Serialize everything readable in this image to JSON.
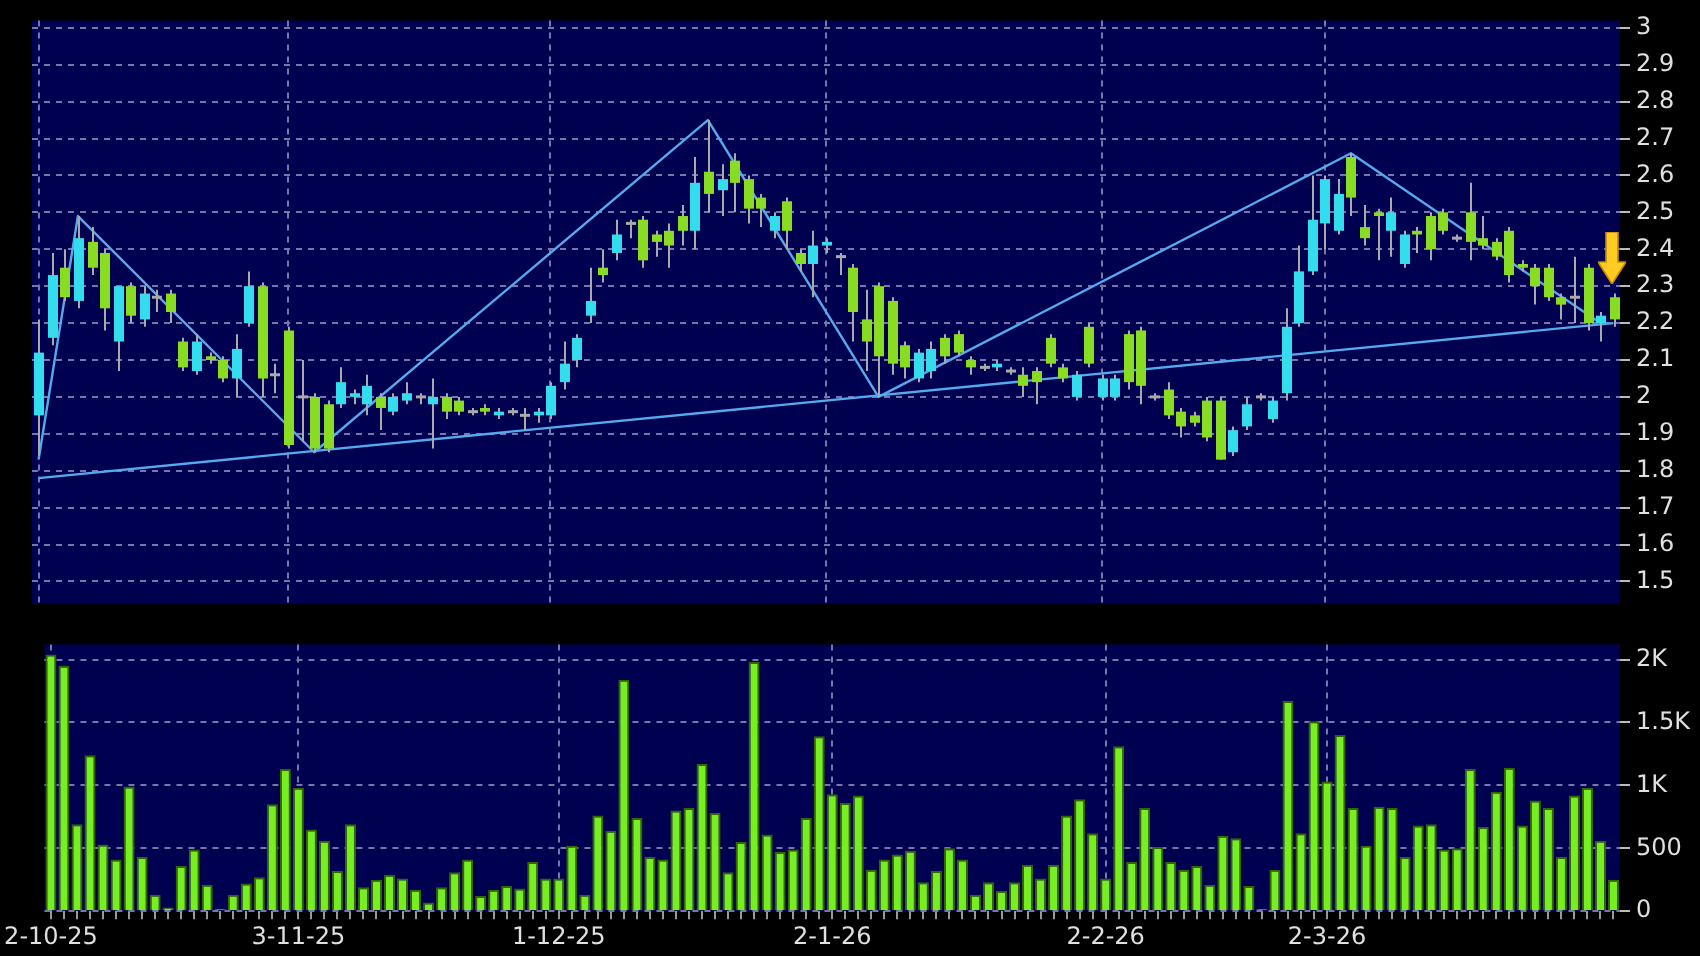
{
  "chart_data": [
    {
      "type": "candlestick",
      "tick_labels": "y",
      "grid": true,
      "ylim": [
        1.44,
        3.02
      ],
      "yticks": [
        1.5,
        1.6,
        1.7,
        1.8,
        1.9,
        2,
        2.1,
        2.2,
        2.3,
        2.4,
        2.5,
        2.6,
        2.7,
        2.8,
        2.9,
        3
      ],
      "categories": [
        null,
        null,
        null,
        null,
        null,
        null,
        null,
        null,
        null,
        null,
        null,
        null,
        null,
        null,
        null,
        null,
        null,
        null,
        null,
        null,
        null,
        null,
        null,
        null,
        null,
        null,
        null,
        null,
        null,
        null,
        null,
        null,
        null,
        null,
        null,
        null,
        null,
        null,
        null,
        null,
        null,
        null,
        null,
        null,
        null,
        null,
        null,
        null,
        null,
        null,
        null,
        null,
        null,
        null,
        null,
        null,
        null,
        null,
        null,
        null,
        null,
        null,
        null,
        null,
        null,
        null,
        null,
        null,
        null,
        null,
        null,
        null,
        null,
        null,
        null,
        null,
        null,
        null,
        null,
        null,
        null,
        null,
        null,
        null,
        null,
        null,
        null,
        null,
        null,
        null,
        null,
        null,
        null,
        null,
        null,
        null,
        null,
        null,
        null,
        null,
        null,
        null,
        null,
        null,
        null,
        null,
        null,
        null,
        null,
        null,
        null,
        null,
        null,
        null,
        null,
        null,
        null,
        null,
        null,
        null,
        null
      ],
      "ohlc": [
        [
          1.95,
          2.21,
          1.84,
          2.12
        ],
        [
          2.16,
          2.39,
          2.14,
          2.33
        ],
        [
          2.35,
          2.4,
          2.26,
          2.27
        ],
        [
          2.26,
          2.49,
          2.24,
          2.43
        ],
        [
          2.42,
          2.46,
          2.33,
          2.35
        ],
        [
          2.39,
          2.4,
          2.18,
          2.24
        ],
        [
          2.15,
          2.3,
          2.07,
          2.3
        ],
        [
          2.3,
          2.31,
          2.2,
          2.22
        ],
        [
          2.21,
          2.3,
          2.19,
          2.28
        ],
        [
          2.27,
          2.29,
          2.23,
          2.27
        ],
        [
          2.28,
          2.29,
          2.2,
          2.23
        ],
        [
          2.15,
          2.16,
          2.07,
          2.08
        ],
        [
          2.07,
          2.17,
          2.06,
          2.15
        ],
        [
          2.11,
          2.12,
          2.09,
          2.1
        ],
        [
          2.1,
          2.11,
          2.04,
          2.05
        ],
        [
          2.05,
          2.17,
          2,
          2.13
        ],
        [
          2.2,
          2.34,
          2.19,
          2.3
        ],
        [
          2.3,
          2.31,
          2,
          2.05
        ],
        [
          2.06,
          2.09,
          2.01,
          2.06
        ],
        [
          2.18,
          2.19,
          1.86,
          1.87
        ],
        [
          2,
          2.1,
          1.88,
          2
        ],
        [
          2,
          2.01,
          1.85,
          1.86
        ],
        [
          1.98,
          1.99,
          1.85,
          1.86
        ],
        [
          1.98,
          2.08,
          1.97,
          2.04
        ],
        [
          2,
          2.02,
          1.98,
          2.01
        ],
        [
          1.98,
          2.06,
          1.95,
          2.03
        ],
        [
          2,
          2.01,
          1.91,
          1.97
        ],
        [
          1.96,
          2.01,
          1.95,
          2
        ],
        [
          1.99,
          2.04,
          1.98,
          2.01
        ],
        [
          2,
          2.01,
          1.98,
          2
        ],
        [
          1.98,
          2.05,
          1.86,
          2
        ],
        [
          2,
          2.01,
          1.94,
          1.96
        ],
        [
          1.99,
          2,
          1.95,
          1.96
        ],
        [
          1.96,
          1.97,
          1.95,
          1.96
        ],
        [
          1.97,
          1.98,
          1.95,
          1.96
        ],
        [
          1.95,
          1.97,
          1.94,
          1.96
        ],
        [
          1.96,
          1.97,
          1.95,
          1.96
        ],
        [
          1.95,
          1.97,
          1.91,
          1.95
        ],
        [
          1.95,
          1.97,
          1.93,
          1.96
        ],
        [
          1.95,
          2.04,
          1.94,
          2.03
        ],
        [
          2.04,
          2.15,
          2.02,
          2.09
        ],
        [
          2.1,
          2.17,
          2.08,
          2.16
        ],
        [
          2.22,
          2.35,
          2.2,
          2.26
        ],
        [
          2.35,
          2.4,
          2.31,
          2.33
        ],
        [
          2.39,
          2.48,
          2.37,
          2.44
        ],
        [
          2.47,
          2.48,
          2.43,
          2.47
        ],
        [
          2.48,
          2.49,
          2.35,
          2.37
        ],
        [
          2.44,
          2.45,
          2.38,
          2.42
        ],
        [
          2.45,
          2.47,
          2.35,
          2.41
        ],
        [
          2.49,
          2.52,
          2.41,
          2.45
        ],
        [
          2.45,
          2.65,
          2.4,
          2.58
        ],
        [
          2.61,
          2.75,
          2.5,
          2.55
        ],
        [
          2.56,
          2.63,
          2.49,
          2.59
        ],
        [
          2.64,
          2.66,
          2.5,
          2.58
        ],
        [
          2.59,
          2.6,
          2.47,
          2.51
        ],
        [
          2.54,
          2.55,
          2.46,
          2.51
        ],
        [
          2.45,
          2.5,
          2.43,
          2.49
        ],
        [
          2.53,
          2.54,
          2.4,
          2.45
        ],
        [
          2.39,
          2.4,
          2.34,
          2.36
        ],
        [
          2.36,
          2.45,
          2.27,
          2.41
        ],
        [
          2.41,
          2.43,
          2.39,
          2.42
        ],
        [
          2.38,
          2.39,
          2.33,
          2.38
        ],
        [
          2.35,
          2.36,
          2.15,
          2.23
        ],
        [
          2.21,
          2.29,
          2.07,
          2.15
        ],
        [
          2.3,
          2.31,
          2,
          2.11
        ],
        [
          2.26,
          2.27,
          2.06,
          2.09
        ],
        [
          2.14,
          2.15,
          2.05,
          2.08
        ],
        [
          2.05,
          2.13,
          2.04,
          2.12
        ],
        [
          2.07,
          2.15,
          2.05,
          2.13
        ],
        [
          2.16,
          2.17,
          2.09,
          2.11
        ],
        [
          2.17,
          2.18,
          2.11,
          2.12
        ],
        [
          2.1,
          2.11,
          2.06,
          2.08
        ],
        [
          2.08,
          2.09,
          2.07,
          2.08
        ],
        [
          2.08,
          2.1,
          2.07,
          2.09
        ],
        [
          2.07,
          2.08,
          2.06,
          2.07
        ],
        [
          2.06,
          2.08,
          2,
          2.03
        ],
        [
          2.07,
          2.08,
          1.98,
          2.04
        ],
        [
          2.16,
          2.17,
          2.08,
          2.09
        ],
        [
          2.08,
          2.09,
          2.04,
          2.05
        ],
        [
          2,
          2.07,
          1.99,
          2.06
        ],
        [
          2.19,
          2.2,
          2.08,
          2.09
        ],
        [
          2,
          2.06,
          1.99,
          2.05
        ],
        [
          2,
          2.06,
          1.99,
          2.05
        ],
        [
          2.17,
          2.18,
          2.02,
          2.04
        ],
        [
          2.18,
          2.19,
          1.98,
          2.03
        ],
        [
          2,
          2.01,
          1.99,
          2
        ],
        [
          2.02,
          2.04,
          1.94,
          1.95
        ],
        [
          1.96,
          1.97,
          1.89,
          1.92
        ],
        [
          1.95,
          1.96,
          1.92,
          1.93
        ],
        [
          1.99,
          2,
          1.88,
          1.89
        ],
        [
          1.99,
          2,
          1.83,
          1.83
        ],
        [
          1.85,
          1.92,
          1.84,
          1.91
        ],
        [
          1.92,
          2,
          1.91,
          1.98
        ],
        [
          2,
          2.01,
          1.99,
          2
        ],
        [
          1.94,
          2,
          1.93,
          1.99
        ],
        [
          2.01,
          2.24,
          1.99,
          2.19
        ],
        [
          2.2,
          2.41,
          2.19,
          2.34
        ],
        [
          2.34,
          2.6,
          2.33,
          2.48
        ],
        [
          2.47,
          2.6,
          2.4,
          2.59
        ],
        [
          2.45,
          2.59,
          2.44,
          2.55
        ],
        [
          2.65,
          2.66,
          2.49,
          2.54
        ],
        [
          2.46,
          2.52,
          2.41,
          2.43
        ],
        [
          2.5,
          2.51,
          2.37,
          2.49
        ],
        [
          2.45,
          2.54,
          2.38,
          2.5
        ],
        [
          2.36,
          2.45,
          2.35,
          2.44
        ],
        [
          2.45,
          2.46,
          2.39,
          2.44
        ],
        [
          2.49,
          2.5,
          2.37,
          2.4
        ],
        [
          2.5,
          2.51,
          2.44,
          2.45
        ],
        [
          2.43,
          2.44,
          2.42,
          2.43
        ],
        [
          2.5,
          2.58,
          2.37,
          2.42
        ],
        [
          2.43,
          2.49,
          2.4,
          2.41
        ],
        [
          2.42,
          2.43,
          2.37,
          2.38
        ],
        [
          2.45,
          2.46,
          2.31,
          2.33
        ],
        [
          2.36,
          2.37,
          2.34,
          2.35
        ],
        [
          2.35,
          2.36,
          2.25,
          2.3
        ],
        [
          2.35,
          2.36,
          2.26,
          2.27
        ],
        [
          2.27,
          2.28,
          2.21,
          2.25
        ],
        [
          2.27,
          2.38,
          2.2,
          2.27
        ],
        [
          2.35,
          2.36,
          2.18,
          2.2
        ],
        [
          2.2,
          2.23,
          2.15,
          2.22
        ],
        [
          2.27,
          2.28,
          2.19,
          2.21
        ]
      ],
      "colors": [
        "#33ddee",
        "#33ddee",
        "#88dd22",
        "#33ddee",
        "#88dd22",
        "#88dd22",
        "#33ddee",
        "#88dd22",
        "#33ddee",
        "#aaaaaa",
        "#88dd22",
        "#88dd22",
        "#33ddee",
        "#88dd22",
        "#88dd22",
        "#33ddee",
        "#33ddee",
        "#88dd22",
        "#aaaaaa",
        "#88dd22",
        "#aaaaaa",
        "#88dd22",
        "#88dd22",
        "#33ddee",
        "#33ddee",
        "#33ddee",
        "#88dd22",
        "#33ddee",
        "#33ddee",
        "#aaaaaa",
        "#33ddee",
        "#88dd22",
        "#88dd22",
        "#aaaaaa",
        "#88dd22",
        "#33ddee",
        "#aaaaaa",
        "#aaaaaa",
        "#33ddee",
        "#33ddee",
        "#33ddee",
        "#33ddee",
        "#33ddee",
        "#88dd22",
        "#33ddee",
        "#aaaaaa",
        "#88dd22",
        "#88dd22",
        "#88dd22",
        "#88dd22",
        "#33ddee",
        "#88dd22",
        "#33ddee",
        "#88dd22",
        "#88dd22",
        "#88dd22",
        "#33ddee",
        "#88dd22",
        "#88dd22",
        "#33ddee",
        "#33ddee",
        "#aaaaaa",
        "#88dd22",
        "#88dd22",
        "#88dd22",
        "#88dd22",
        "#88dd22",
        "#33ddee",
        "#33ddee",
        "#88dd22",
        "#88dd22",
        "#88dd22",
        "#aaaaaa",
        "#33ddee",
        "#aaaaaa",
        "#88dd22",
        "#88dd22",
        "#88dd22",
        "#88dd22",
        "#33ddee",
        "#88dd22",
        "#33ddee",
        "#33ddee",
        "#88dd22",
        "#88dd22",
        "#aaaaaa",
        "#88dd22",
        "#88dd22",
        "#88dd22",
        "#88dd22",
        "#88dd22",
        "#33ddee",
        "#33ddee",
        "#aaaaaa",
        "#33ddee",
        "#33ddee",
        "#33ddee",
        "#33ddee",
        "#33ddee",
        "#33ddee",
        "#88dd22",
        "#88dd22",
        "#88dd22",
        "#33ddee",
        "#33ddee",
        "#88dd22",
        "#88dd22",
        "#88dd22",
        "#aaaaaa",
        "#88dd22",
        "#88dd22",
        "#88dd22",
        "#88dd22",
        "#88dd22",
        "#88dd22",
        "#88dd22",
        "#88dd22",
        "#aaaaaa",
        "#88dd22",
        "#33ddee",
        "#88dd22"
      ],
      "series": [
        {
          "type": "line",
          "color": "#55aaee",
          "values": [
            1.83,
            null,
            null,
            2.49,
            null,
            null,
            null,
            null,
            null,
            null,
            null,
            null,
            null,
            null,
            null,
            null,
            null,
            null,
            null,
            null,
            null,
            1.85,
            null,
            null,
            null,
            null,
            null,
            null,
            null,
            null,
            null,
            null,
            null,
            null,
            null,
            null,
            null,
            null,
            null,
            null,
            null,
            null,
            null,
            null,
            null,
            null,
            null,
            null,
            null,
            null,
            null,
            2.75,
            null,
            null,
            null,
            null,
            null,
            null,
            null,
            null,
            null,
            null,
            null,
            null,
            2,
            null,
            null,
            null,
            null,
            null,
            null,
            null,
            null,
            null,
            null,
            null,
            null,
            null,
            null,
            null,
            null,
            null,
            null,
            null,
            null,
            null,
            null,
            null,
            null,
            null,
            null,
            null,
            null,
            null,
            null,
            null,
            null,
            null,
            null,
            null,
            2.66,
            null,
            null,
            null,
            null,
            null,
            null,
            null,
            null,
            null,
            null,
            null,
            null,
            null,
            null,
            null,
            null,
            null,
            null,
            2.2,
            null
          ]
        },
        {
          "type": "line",
          "color": "#55aaee",
          "values": [
            1.78,
            null,
            null,
            null,
            null,
            null,
            null,
            null,
            null,
            null,
            null,
            null,
            null,
            null,
            null,
            null,
            null,
            null,
            null,
            null,
            null,
            null,
            null,
            null,
            null,
            null,
            null,
            null,
            null,
            null,
            null,
            null,
            null,
            null,
            null,
            null,
            null,
            null,
            null,
            null,
            null,
            null,
            null,
            null,
            null,
            null,
            null,
            null,
            null,
            null,
            null,
            null,
            null,
            null,
            null,
            null,
            null,
            null,
            null,
            null,
            null,
            null,
            null,
            null,
            null,
            null,
            null,
            null,
            null,
            null,
            null,
            null,
            null,
            null,
            null,
            null,
            null,
            null,
            null,
            null,
            null,
            null,
            null,
            null,
            null,
            null,
            null,
            null,
            null,
            null,
            null,
            null,
            null,
            null,
            null,
            null,
            null,
            null,
            null,
            null,
            null,
            null,
            null,
            null,
            null,
            null,
            null,
            null,
            null,
            null,
            null,
            null,
            null,
            null,
            null,
            null,
            null,
            null,
            null,
            null,
            2.2
          ]
        }
      ]
    },
    {
      "type": "bar",
      "grid": true,
      "color": "#77ee22",
      "ylim": [
        0,
        2120
      ],
      "yticks": [
        0,
        500,
        {
          "value": 1000,
          "label": "1K"
        },
        {
          "value": 1500,
          "label": "1.5K"
        },
        {
          "value": 2000,
          "label": "2K"
        }
      ],
      "categories": [
        "2-10-25",
        null,
        null,
        null,
        null,
        null,
        null,
        null,
        null,
        null,
        null,
        null,
        null,
        null,
        null,
        null,
        null,
        null,
        null,
        "3-11-25",
        null,
        null,
        null,
        null,
        null,
        null,
        null,
        null,
        null,
        null,
        null,
        null,
        null,
        null,
        null,
        null,
        null,
        null,
        null,
        "1-12-25",
        null,
        null,
        null,
        null,
        null,
        null,
        null,
        null,
        null,
        null,
        null,
        null,
        null,
        null,
        null,
        null,
        null,
        null,
        null,
        null,
        "2-1-26",
        null,
        null,
        null,
        null,
        null,
        null,
        null,
        null,
        null,
        null,
        null,
        null,
        null,
        null,
        null,
        null,
        null,
        null,
        null,
        null,
        "2-2-26",
        null,
        null,
        null,
        null,
        null,
        null,
        null,
        null,
        null,
        null,
        null,
        null,
        null,
        null,
        null,
        null,
        "2-3-26",
        null,
        null,
        null,
        null,
        null,
        null,
        null,
        null,
        null,
        null,
        null,
        null,
        null,
        null,
        null,
        null,
        null,
        null,
        null,
        null,
        null,
        null
      ],
      "values": [
        2040,
        1950,
        690,
        1240,
        530,
        410,
        990,
        430,
        130,
        30,
        360,
        490,
        210,
        20,
        130,
        220,
        270,
        850,
        1130,
        980,
        650,
        560,
        320,
        690,
        190,
        250,
        290,
        260,
        170,
        70,
        190,
        310,
        410,
        120,
        170,
        200,
        180,
        390,
        260,
        260,
        520,
        130,
        760,
        640,
        1840,
        740,
        430,
        410,
        800,
        820,
        1170,
        780,
        310,
        550,
        1980,
        610,
        470,
        490,
        740,
        1390,
        930,
        860,
        920,
        330,
        410,
        450,
        480,
        230,
        320,
        500,
        410,
        130,
        230,
        160,
        230,
        370,
        260,
        370,
        760,
        890,
        620,
        260,
        1310,
        390,
        820,
        510,
        390,
        330,
        360,
        210,
        600,
        580,
        200,
        20,
        330,
        1670,
        620,
        1510,
        1030,
        1400,
        820,
        520,
        830,
        820,
        430,
        680,
        690,
        490,
        500,
        1130,
        670,
        950,
        1140,
        680,
        880,
        820,
        430,
        920,
        980,
        560,
        250
      ]
    }
  ]
}
